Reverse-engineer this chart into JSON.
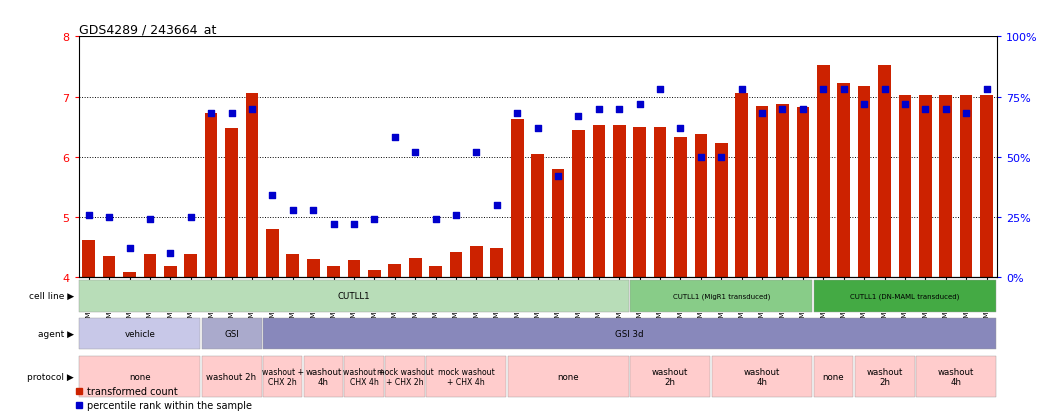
{
  "title": "GDS4289 / 243664_at",
  "samples": [
    "GSM731500",
    "GSM731501",
    "GSM731502",
    "GSM731503",
    "GSM731504",
    "GSM731505",
    "GSM731518",
    "GSM731519",
    "GSM731520",
    "GSM731506",
    "GSM731507",
    "GSM731508",
    "GSM731509",
    "GSM731510",
    "GSM731511",
    "GSM731512",
    "GSM731513",
    "GSM731514",
    "GSM731515",
    "GSM731516",
    "GSM731517",
    "GSM731521",
    "GSM731522",
    "GSM731523",
    "GSM731524",
    "GSM731525",
    "GSM731526",
    "GSM731527",
    "GSM731528",
    "GSM731529",
    "GSM731531",
    "GSM731532",
    "GSM731533",
    "GSM731534",
    "GSM731535",
    "GSM731536",
    "GSM731537",
    "GSM731538",
    "GSM731539",
    "GSM731540",
    "GSM731541",
    "GSM731542",
    "GSM731543",
    "GSM731544",
    "GSM731545"
  ],
  "bar_values": [
    4.62,
    4.35,
    4.08,
    4.38,
    4.18,
    4.38,
    6.72,
    6.48,
    7.05,
    4.8,
    4.38,
    4.3,
    4.18,
    4.28,
    4.12,
    4.22,
    4.32,
    4.18,
    4.42,
    4.52,
    4.48,
    6.62,
    6.05,
    5.8,
    6.45,
    6.52,
    6.52,
    6.5,
    6.5,
    6.32,
    6.38,
    6.22,
    7.05,
    6.85,
    6.88,
    6.82,
    7.52,
    7.22,
    7.18,
    7.52,
    7.02,
    7.02,
    7.02,
    7.02,
    7.02
  ],
  "percentile_values": [
    26,
    25,
    12,
    24,
    10,
    25,
    68,
    68,
    70,
    34,
    28,
    28,
    22,
    22,
    24,
    58,
    52,
    24,
    26,
    52,
    30,
    68,
    62,
    42,
    67,
    70,
    70,
    72,
    78,
    62,
    50,
    50,
    78,
    68,
    70,
    70,
    78,
    78,
    72,
    78,
    72,
    70,
    70,
    68,
    78
  ],
  "ylim_left": [
    4,
    8
  ],
  "ylim_right": [
    0,
    100
  ],
  "bar_color": "#cc2200",
  "dot_color": "#0000cc",
  "cell_line_groups": [
    {
      "label": "CUTLL1",
      "start": 0,
      "end": 27,
      "color": "#b8ddb8"
    },
    {
      "label": "CUTLL1 (MigR1 transduced)",
      "start": 27,
      "end": 36,
      "color": "#88cc88"
    },
    {
      "label": "CUTLL1 (DN-MAML transduced)",
      "start": 36,
      "end": 45,
      "color": "#44aa44"
    }
  ],
  "agent_groups": [
    {
      "label": "vehicle",
      "start": 0,
      "end": 6,
      "color": "#c8c8e8"
    },
    {
      "label": "GSI",
      "start": 6,
      "end": 9,
      "color": "#aaaacc"
    },
    {
      "label": "GSI 3d",
      "start": 9,
      "end": 45,
      "color": "#8888bb"
    }
  ],
  "protocol_groups": [
    {
      "label": "none",
      "start": 0,
      "end": 6,
      "color": "#ffcccc"
    },
    {
      "label": "washout 2h",
      "start": 6,
      "end": 9,
      "color": "#ffcccc"
    },
    {
      "label": "washout +\nCHX 2h",
      "start": 9,
      "end": 11,
      "color": "#ffcccc"
    },
    {
      "label": "washout\n4h",
      "start": 11,
      "end": 13,
      "color": "#ffcccc"
    },
    {
      "label": "washout +\nCHX 4h",
      "start": 13,
      "end": 15,
      "color": "#ffcccc"
    },
    {
      "label": "mock washout\n+ CHX 2h",
      "start": 15,
      "end": 17,
      "color": "#ffcccc"
    },
    {
      "label": "mock washout\n+ CHX 4h",
      "start": 17,
      "end": 21,
      "color": "#ffcccc"
    },
    {
      "label": "none",
      "start": 21,
      "end": 27,
      "color": "#ffcccc"
    },
    {
      "label": "washout\n2h",
      "start": 27,
      "end": 31,
      "color": "#ffcccc"
    },
    {
      "label": "washout\n4h",
      "start": 31,
      "end": 36,
      "color": "#ffcccc"
    },
    {
      "label": "none",
      "start": 36,
      "end": 38,
      "color": "#ffcccc"
    },
    {
      "label": "washout\n2h",
      "start": 38,
      "end": 41,
      "color": "#ffcccc"
    },
    {
      "label": "washout\n4h",
      "start": 41,
      "end": 45,
      "color": "#ffcccc"
    }
  ],
  "right_axis_ticks": [
    0,
    25,
    50,
    75,
    100
  ],
  "right_axis_labels": [
    "0%",
    "25%",
    "50%",
    "75%",
    "100%"
  ],
  "legend_bar_label": "transformed count",
  "legend_dot_label": "percentile rank within the sample",
  "bg_color": "#ffffff"
}
